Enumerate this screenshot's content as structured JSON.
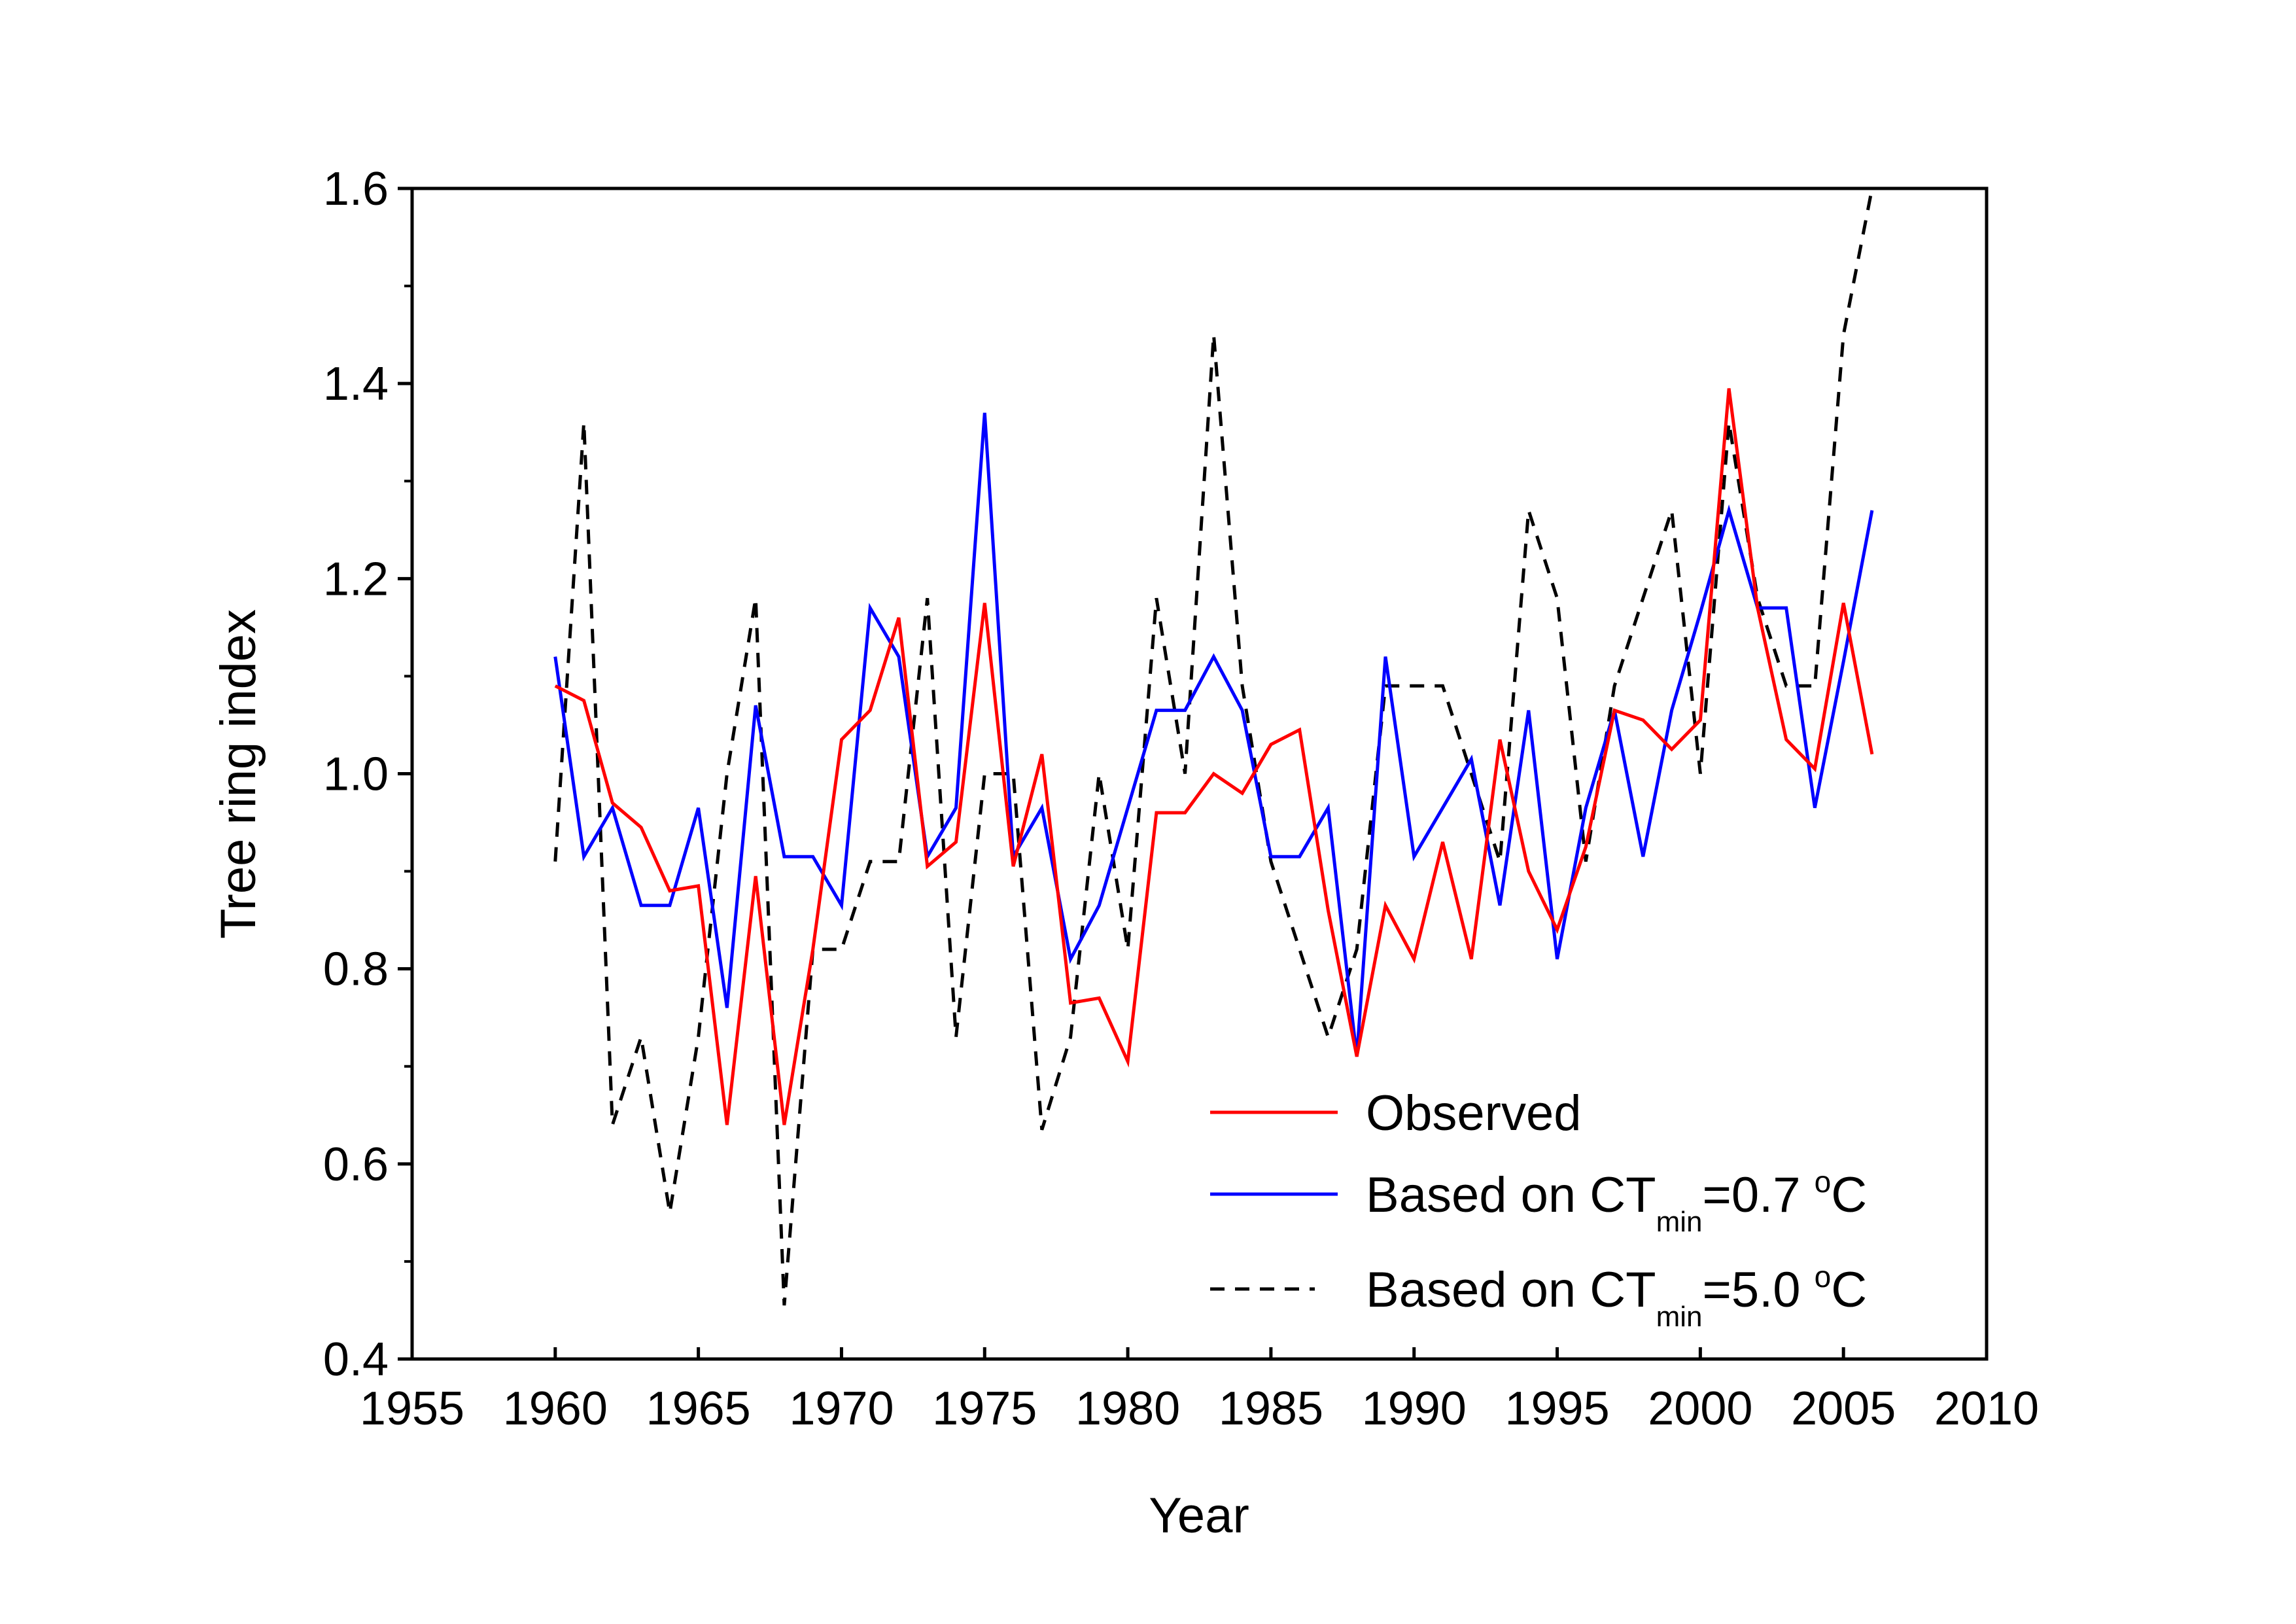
{
  "chart_data": {
    "type": "line",
    "title": "",
    "xlabel": "Year",
    "ylabel": "Tree ring index",
    "xlim": [
      1955,
      2010
    ],
    "ylim": [
      0.4,
      1.6
    ],
    "xticks": [
      "1955",
      "1960",
      "1965",
      "1970",
      "1975",
      "1980",
      "1985",
      "1990",
      "1995",
      "2000",
      "2005",
      "2010"
    ],
    "yticks": [
      "0.4",
      "0.6",
      "0.8",
      "1.0",
      "1.2",
      "1.4",
      "1.6"
    ],
    "grid": false,
    "legend_position": "bottom-right",
    "x": [
      1960,
      1961,
      1962,
      1963,
      1964,
      1965,
      1966,
      1967,
      1968,
      1969,
      1970,
      1971,
      1972,
      1973,
      1974,
      1975,
      1976,
      1977,
      1978,
      1979,
      1980,
      1981,
      1982,
      1983,
      1984,
      1985,
      1986,
      1987,
      1988,
      1989,
      1990,
      1991,
      1992,
      1993,
      1994,
      1995,
      1996,
      1997,
      1998,
      1999,
      2000,
      2001,
      2002,
      2003,
      2004,
      2005,
      2006
    ],
    "series": [
      {
        "name": "Observed",
        "legend_parts": {
          "main": "Observed",
          "sub": "",
          "after": "",
          "sup": "",
          "unit": ""
        },
        "color": "#ff0000",
        "style": "solid",
        "values": [
          1.09,
          1.075,
          0.97,
          0.945,
          0.88,
          0.885,
          0.64,
          0.895,
          0.64,
          0.82,
          1.035,
          1.065,
          1.16,
          0.905,
          0.93,
          1.175,
          0.905,
          1.02,
          0.765,
          0.77,
          0.705,
          0.96,
          0.96,
          1.0,
          0.98,
          1.03,
          1.045,
          0.86,
          0.71,
          0.865,
          0.81,
          0.93,
          0.81,
          1.035,
          0.9,
          0.84,
          0.925,
          1.065,
          1.055,
          1.025,
          1.055,
          1.395,
          1.17,
          1.035,
          1.005,
          1.175,
          1.02
        ]
      },
      {
        "name": "Based on CTmin=0.7 °C",
        "legend_parts": {
          "main": "Based on CT",
          "sub": "min",
          "after": "=0.7 ",
          "sup": "o",
          "unit": "C"
        },
        "color": "#0000ff",
        "style": "solid",
        "values": [
          1.12,
          0.915,
          0.965,
          0.865,
          0.865,
          0.965,
          0.76,
          1.07,
          0.915,
          0.915,
          0.865,
          1.17,
          1.12,
          0.915,
          0.965,
          1.37,
          0.915,
          0.965,
          0.81,
          0.865,
          0.965,
          1.065,
          1.065,
          1.12,
          1.065,
          0.915,
          0.915,
          0.965,
          0.71,
          1.12,
          0.915,
          0.965,
          1.015,
          0.865,
          1.065,
          0.81,
          0.965,
          1.065,
          0.915,
          1.065,
          1.165,
          1.27,
          1.17,
          1.17,
          0.965,
          1.115,
          1.27
        ]
      },
      {
        "name": "Based on CTmin=5.0 °C",
        "legend_parts": {
          "main": "Based on CT",
          "sub": "min",
          "after": "=5.0 ",
          "sup": "o",
          "unit": "C"
        },
        "color": "#000000",
        "style": "dashed",
        "values": [
          0.91,
          1.36,
          0.64,
          0.73,
          0.55,
          0.73,
          1.0,
          1.18,
          0.455,
          0.82,
          0.82,
          0.91,
          0.91,
          1.18,
          0.73,
          1.0,
          1.0,
          0.635,
          0.73,
          1.0,
          0.82,
          1.18,
          1.0,
          1.45,
          1.09,
          0.91,
          0.82,
          0.73,
          0.82,
          1.09,
          1.09,
          1.09,
          1.0,
          0.91,
          1.27,
          1.18,
          0.91,
          1.09,
          1.18,
          1.27,
          1.0,
          1.36,
          1.18,
          1.09,
          1.09,
          1.45,
          1.6
        ]
      }
    ]
  }
}
